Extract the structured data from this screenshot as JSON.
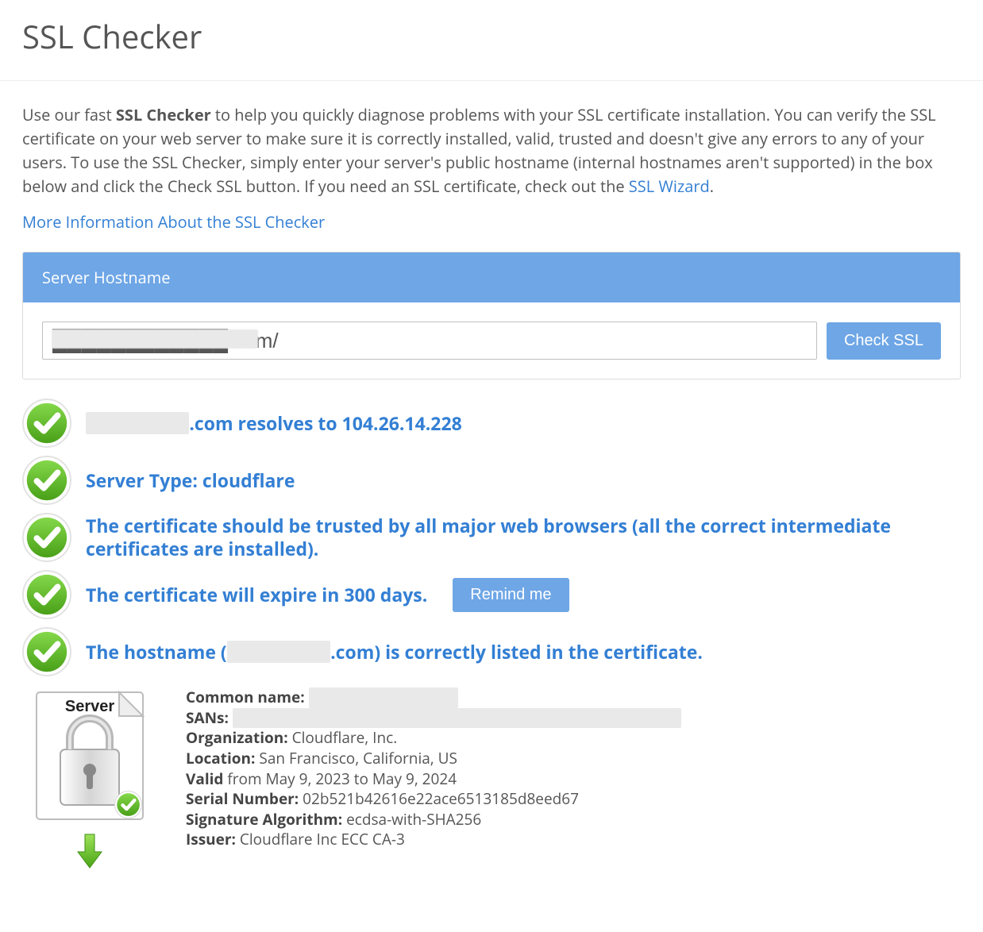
{
  "colors": {
    "link": "#337fd4",
    "button_bg": "#6ea6e6",
    "button_fg": "#ffffff",
    "text": "#555555",
    "panel_border": "#dddddd",
    "check_fill": "#5db822",
    "check_ring": "#e6e6e6",
    "redacted": "#e9e9e9"
  },
  "page": {
    "title": "SSL Checker",
    "intro_pre": "Use our fast ",
    "intro_bold": "SSL Checker",
    "intro_post": " to help you quickly diagnose problems with your SSL certificate installation. You can verify the SSL certificate on your web server to make sure it is correctly installed, valid, trusted and doesn't give any errors to any of your users. To use the SSL Checker, simply enter your server's public hostname (internal hostnames aren't supported) in the box below and click the Check SSL button. If you need an SSL certificate, check out the ",
    "intro_link": "SSL Wizard",
    "intro_tail": ".",
    "more_link": "More Information About the SSL Checker"
  },
  "form": {
    "header": "Server Hostname",
    "input_value": "████████████.com/",
    "input_visible_tail": ".com/",
    "check_label": "Check SSL"
  },
  "results": [
    {
      "text_pre": "",
      "redacted": "████████",
      "text_post": ".com resolves to 104.26.14.228",
      "has_button": false
    },
    {
      "text_pre": "Server Type: cloudflare",
      "redacted": "",
      "text_post": "",
      "has_button": false
    },
    {
      "text_pre": "The certificate should be trusted by all major web browsers (all the correct intermediate certificates are installed).",
      "redacted": "",
      "text_post": "",
      "has_button": false
    },
    {
      "text_pre": "The certificate will expire in 300 days.",
      "redacted": "",
      "text_post": "",
      "has_button": true,
      "button_label": "Remind me"
    },
    {
      "text_pre": "The hostname (",
      "redacted": "████████",
      "text_post": ".com) is correctly listed in the certificate.",
      "has_button": false
    }
  ],
  "cert": {
    "server_label": "Server",
    "common_name_label": "Common name:",
    "common_name_value": "██████████████",
    "sans_label": "SANs:",
    "sans_value": "██████████████████████████████████████████",
    "org_label": "Organization:",
    "org_value": "Cloudflare, Inc.",
    "loc_label": "Location:",
    "loc_value": "San Francisco, California, US",
    "valid_label": "Valid",
    "valid_value": "from May 9, 2023 to May 9, 2024",
    "serial_label": "Serial Number:",
    "serial_value": "02b521b42616e22ace6513185d8eed67",
    "sig_label": "Signature Algorithm:",
    "sig_value": "ecdsa-with-SHA256",
    "issuer_label": "Issuer:",
    "issuer_value": "Cloudflare Inc ECC CA-3"
  }
}
